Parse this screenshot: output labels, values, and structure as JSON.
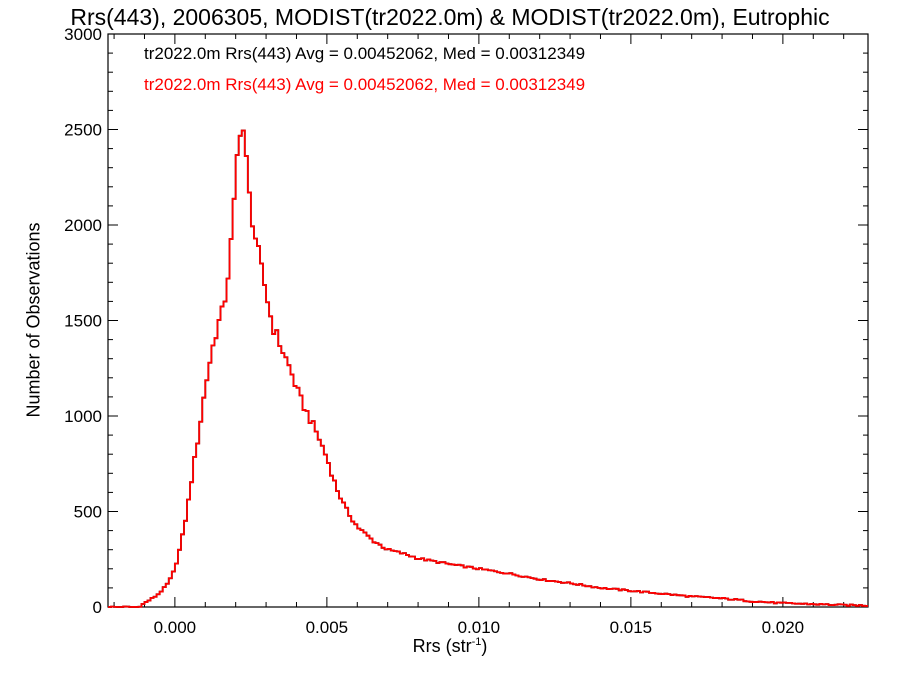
{
  "chart_data": {
    "type": "histogram",
    "title": "Rrs(443), 2006305, MODIST(tr2022.0m) & MODIST(tr2022.0m), Eutrophic",
    "xlabel": "Rrs (str",
    "xlabel_sup": "-1",
    "xlabel_close": ")",
    "ylabel": "Number of Observations",
    "xlim": [
      -0.0022,
      0.0228
    ],
    "ylim": [
      0,
      3000
    ],
    "xticks": [
      0.0,
      0.005,
      0.01,
      0.015,
      0.02
    ],
    "xtick_labels": [
      "0.000",
      "0.005",
      "0.010",
      "0.015",
      "0.020"
    ],
    "yticks": [
      0,
      500,
      1000,
      1500,
      2000,
      2500,
      3000
    ],
    "ytick_labels": [
      "0",
      "500",
      "1000",
      "1500",
      "2000",
      "2500",
      "3000"
    ],
    "stats": [
      "tr2022.0m Rrs(443) Avg = 0.00452062, Med = 0.00312349",
      "tr2022.0m Rrs(443) Avg = 0.00452062, Med = 0.00312349"
    ],
    "series": [
      {
        "color": "#000000",
        "points": [
          [
            -0.0022,
            0
          ],
          [
            -0.0012,
            0
          ],
          [
            -0.001,
            20
          ],
          [
            -0.0008,
            40
          ],
          [
            -0.0006,
            60
          ],
          [
            -0.0004,
            90
          ],
          [
            -0.0002,
            130
          ],
          [
            0.0,
            200
          ],
          [
            0.0002,
            330
          ],
          [
            0.0004,
            500
          ],
          [
            0.0006,
            720
          ],
          [
            0.0008,
            920
          ],
          [
            0.001,
            1150
          ],
          [
            0.0012,
            1330
          ],
          [
            0.0014,
            1470
          ],
          [
            0.0016,
            1560
          ],
          [
            0.0018,
            1800
          ],
          [
            0.002,
            2200
          ],
          [
            0.0021,
            2500
          ],
          [
            0.0022,
            2540
          ],
          [
            0.0023,
            2450
          ],
          [
            0.0024,
            2200
          ],
          [
            0.0026,
            1980
          ],
          [
            0.0028,
            1800
          ],
          [
            0.003,
            1650
          ],
          [
            0.0032,
            1480
          ],
          [
            0.0035,
            1360
          ],
          [
            0.0038,
            1240
          ],
          [
            0.0041,
            1100
          ],
          [
            0.0044,
            1000
          ],
          [
            0.0047,
            900
          ],
          [
            0.005,
            780
          ],
          [
            0.0053,
            630
          ],
          [
            0.0056,
            520
          ],
          [
            0.006,
            420
          ],
          [
            0.0065,
            350
          ],
          [
            0.007,
            300
          ],
          [
            0.0075,
            280
          ],
          [
            0.008,
            255
          ],
          [
            0.009,
            225
          ],
          [
            0.01,
            200
          ],
          [
            0.011,
            175
          ],
          [
            0.012,
            145
          ],
          [
            0.013,
            125
          ],
          [
            0.014,
            100
          ],
          [
            0.015,
            85
          ],
          [
            0.016,
            70
          ],
          [
            0.017,
            55
          ],
          [
            0.018,
            45
          ],
          [
            0.019,
            30
          ],
          [
            0.02,
            20
          ],
          [
            0.021,
            15
          ],
          [
            0.022,
            10
          ],
          [
            0.0228,
            8
          ]
        ]
      },
      {
        "color": "#ff0000",
        "points": [
          [
            -0.0022,
            0
          ],
          [
            -0.0012,
            0
          ],
          [
            -0.001,
            20
          ],
          [
            -0.0008,
            40
          ],
          [
            -0.0006,
            60
          ],
          [
            -0.0004,
            90
          ],
          [
            -0.0002,
            130
          ],
          [
            0.0,
            200
          ],
          [
            0.0002,
            330
          ],
          [
            0.0004,
            500
          ],
          [
            0.0006,
            720
          ],
          [
            0.0008,
            920
          ],
          [
            0.001,
            1150
          ],
          [
            0.0012,
            1330
          ],
          [
            0.0014,
            1470
          ],
          [
            0.0016,
            1560
          ],
          [
            0.0018,
            1800
          ],
          [
            0.002,
            2200
          ],
          [
            0.0021,
            2500
          ],
          [
            0.0022,
            2540
          ],
          [
            0.0023,
            2450
          ],
          [
            0.0024,
            2200
          ],
          [
            0.0026,
            1980
          ],
          [
            0.0028,
            1800
          ],
          [
            0.003,
            1650
          ],
          [
            0.0032,
            1480
          ],
          [
            0.0035,
            1360
          ],
          [
            0.0038,
            1240
          ],
          [
            0.0041,
            1100
          ],
          [
            0.0044,
            1000
          ],
          [
            0.0047,
            900
          ],
          [
            0.005,
            780
          ],
          [
            0.0053,
            630
          ],
          [
            0.0056,
            520
          ],
          [
            0.006,
            420
          ],
          [
            0.0065,
            350
          ],
          [
            0.007,
            300
          ],
          [
            0.0075,
            280
          ],
          [
            0.008,
            255
          ],
          [
            0.009,
            225
          ],
          [
            0.01,
            200
          ],
          [
            0.011,
            175
          ],
          [
            0.012,
            145
          ],
          [
            0.013,
            125
          ],
          [
            0.014,
            100
          ],
          [
            0.015,
            85
          ],
          [
            0.016,
            70
          ],
          [
            0.017,
            55
          ],
          [
            0.018,
            45
          ],
          [
            0.019,
            30
          ],
          [
            0.02,
            20
          ],
          [
            0.021,
            15
          ],
          [
            0.022,
            10
          ],
          [
            0.0228,
            8
          ]
        ]
      }
    ],
    "grid": false,
    "stat_colors": [
      "#000000",
      "#ff0000"
    ]
  }
}
